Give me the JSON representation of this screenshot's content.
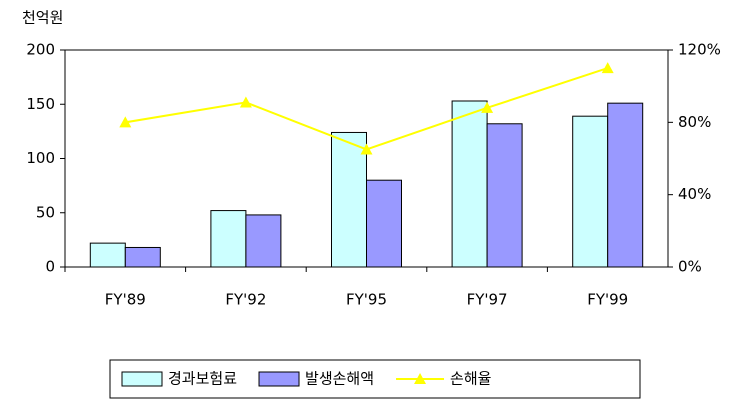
{
  "chart_data": {
    "type": "bar",
    "y_axis_label": "천억원",
    "categories": [
      "FY'89",
      "FY'92",
      "FY'95",
      "FY'97",
      "FY'99"
    ],
    "series": [
      {
        "name": "경과보험료",
        "type": "bar",
        "color": "#ccffff",
        "values": [
          22,
          52,
          124,
          153,
          139
        ]
      },
      {
        "name": "발생손해액",
        "type": "bar",
        "color": "#9999ff",
        "values": [
          18,
          48,
          80,
          132,
          151
        ]
      },
      {
        "name": "손해율",
        "type": "line",
        "axis": "y2",
        "color": "#ffff00",
        "values": [
          80,
          91,
          65,
          88,
          110
        ]
      }
    ],
    "ylim": [
      0,
      200
    ],
    "yticks": [
      0,
      50,
      100,
      150,
      200
    ],
    "y2lim": [
      0,
      120
    ],
    "y2ticks": [
      {
        "value": 0,
        "label": "0%"
      },
      {
        "value": 40,
        "label": "40%"
      },
      {
        "value": 80,
        "label": "80%"
      },
      {
        "value": 120,
        "label": "120%"
      }
    ],
    "legend": "bottom"
  }
}
